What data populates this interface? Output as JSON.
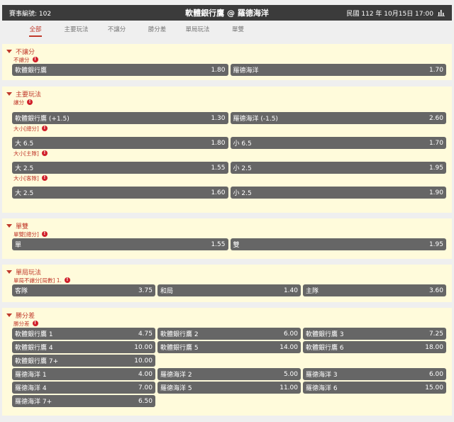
{
  "header": {
    "match_no": "賽事編號: 102",
    "title": "軟體銀行鷹 @ 羅德海洋",
    "datetime": "民國 112 年 10月15日 17:00",
    "stats_icon": "bar-chart-icon"
  },
  "tabs": [
    "全部",
    "主要玩法",
    "不讓分",
    "勝分差",
    "單局玩法",
    "單雙"
  ],
  "colors": {
    "accent": "#c0392b",
    "button": "#666666",
    "section_bg": "#fffbdb",
    "header_bg": "#3b3b3b"
  },
  "sections": [
    {
      "title": "不讓分",
      "markets": [
        {
          "label": "不讓分",
          "rows": [
            [
              [
                "軟體銀行鷹",
                "1.80"
              ],
              [
                "羅德海洋",
                "1.70"
              ]
            ]
          ]
        }
      ]
    },
    {
      "title": "主要玩法",
      "markets": [
        {
          "label": "讓分",
          "rows": [
            [
              [
                "軟體銀行鷹 (+1.5)",
                "1.30"
              ],
              [
                "羅德海洋 (-1.5)",
                "2.60"
              ]
            ]
          ]
        },
        {
          "label": "大小[總分]",
          "rows": [
            [
              [
                "大 6.5",
                "1.80"
              ],
              [
                "小 6.5",
                "1.70"
              ]
            ]
          ]
        },
        {
          "label": "大小[主隊]",
          "rows": [
            [
              [
                "大 2.5",
                "1.55"
              ],
              [
                "小 2.5",
                "1.95"
              ]
            ]
          ]
        },
        {
          "label": "大小[客隊]",
          "rows": [
            [
              [
                "大 2.5",
                "1.60"
              ],
              [
                "小 2.5",
                "1.90"
              ]
            ]
          ]
        }
      ]
    },
    {
      "title": "單雙",
      "markets": [
        {
          "label": "單雙[總分]",
          "rows": [
            [
              [
                "單",
                "1.55"
              ],
              [
                "雙",
                "1.95"
              ]
            ]
          ]
        }
      ]
    },
    {
      "title": "單局玩法",
      "markets": [
        {
          "label": "單局不讓分[局數] 1.",
          "rows": [
            [
              [
                "客隊",
                "3.75"
              ],
              [
                "和局",
                "1.40"
              ],
              [
                "主隊",
                "3.60"
              ]
            ]
          ]
        }
      ]
    },
    {
      "title": "勝分差",
      "markets": [
        {
          "label": "勝分差",
          "rows": [
            [
              [
                "軟體銀行鷹 1",
                "4.75"
              ],
              [
                "軟體銀行鷹 2",
                "6.00"
              ],
              [
                "軟體銀行鷹 3",
                "7.25"
              ]
            ],
            [
              [
                "軟體銀行鷹 4",
                "10.00"
              ],
              [
                "軟體銀行鷹 5",
                "14.00"
              ],
              [
                "軟體銀行鷹 6",
                "18.00"
              ]
            ],
            [
              [
                "軟體銀行鷹 7+",
                "10.00"
              ]
            ],
            [
              [
                "羅德海洋 1",
                "4.00"
              ],
              [
                "羅德海洋 2",
                "5.00"
              ],
              [
                "羅德海洋 3",
                "6.00"
              ]
            ],
            [
              [
                "羅德海洋 4",
                "7.00"
              ],
              [
                "羅德海洋 5",
                "11.00"
              ],
              [
                "羅德海洋 6",
                "15.00"
              ]
            ],
            [
              [
                "羅德海洋 7+",
                "6.50"
              ]
            ]
          ]
        }
      ]
    }
  ]
}
